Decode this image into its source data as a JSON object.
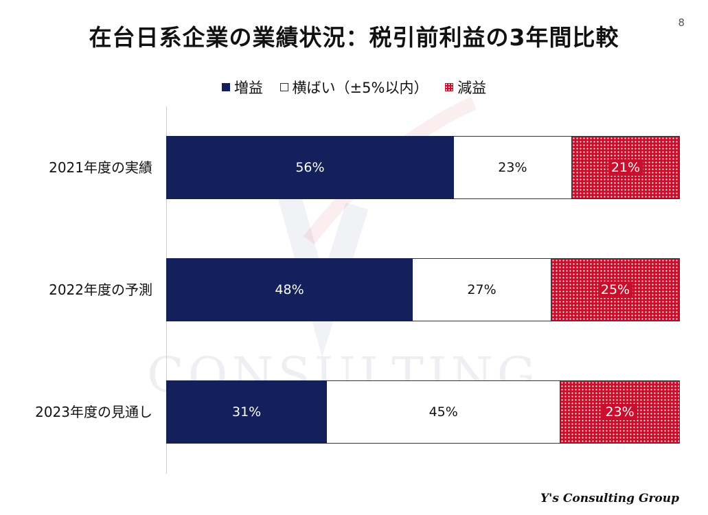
{
  "page_number": "8",
  "title": "在台日系企業の業績状況：税引前利益の3年間比較",
  "legend": {
    "increase": "増益",
    "flat": "横ばい（±5%以内）",
    "decrease": "減益"
  },
  "watermark_text": "CONSULTING",
  "footer": "Y's Consulting Group",
  "colors": {
    "increase": "#13205b",
    "flat": "#ffffff",
    "decrease": "#c8102e"
  },
  "chart_data": {
    "type": "bar",
    "orientation": "horizontal",
    "stacked": "100%",
    "categories": [
      "2021年度の実績",
      "2022年度の予測",
      "2023年度の見通し"
    ],
    "series": [
      {
        "name": "増益",
        "values": [
          56,
          48,
          31
        ],
        "labels": [
          "56%",
          "48%",
          "31%"
        ]
      },
      {
        "name": "横ばい（±5%以内）",
        "values": [
          23,
          27,
          45
        ],
        "labels": [
          "23%",
          "27%",
          "45%"
        ]
      },
      {
        "name": "減益",
        "values": [
          21,
          25,
          23
        ],
        "labels": [
          "21%",
          "25%",
          "23%"
        ]
      }
    ],
    "legend_position": "top",
    "grid": false
  }
}
